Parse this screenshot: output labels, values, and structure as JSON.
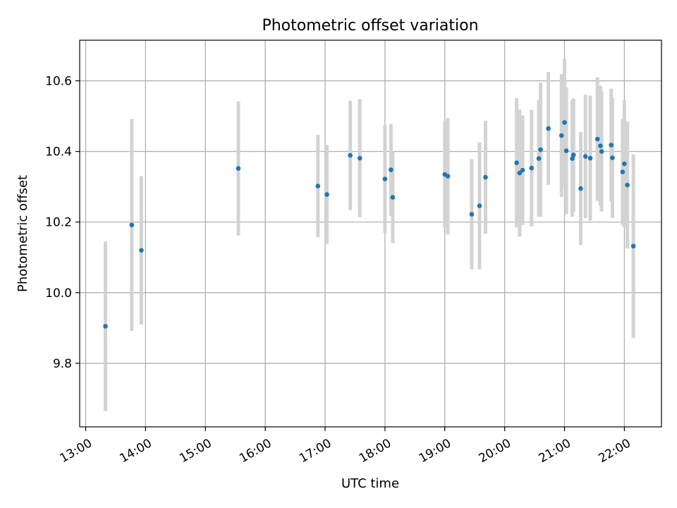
{
  "chart_data": {
    "type": "scatter",
    "title": "Photometric offset variation",
    "xlabel": "UTC time",
    "ylabel": "Photometric offset",
    "x_unit": "hours_utc",
    "xlim": [
      12.9,
      22.62
    ],
    "ylim": [
      9.62,
      10.715
    ],
    "grid": true,
    "legend": "none",
    "xticks": [
      {
        "value": 13,
        "label": "13:00"
      },
      {
        "value": 14,
        "label": "14:00"
      },
      {
        "value": 15,
        "label": "15:00"
      },
      {
        "value": 16,
        "label": "16:00"
      },
      {
        "value": 17,
        "label": "17:00"
      },
      {
        "value": 18,
        "label": "18:00"
      },
      {
        "value": 19,
        "label": "19:00"
      },
      {
        "value": 20,
        "label": "20:00"
      },
      {
        "value": 21,
        "label": "21:00"
      },
      {
        "value": 22,
        "label": "22:00"
      }
    ],
    "yticks": [
      {
        "value": 9.8,
        "label": "9.8"
      },
      {
        "value": 10.0,
        "label": "10.0"
      },
      {
        "value": 10.2,
        "label": "10.2"
      },
      {
        "value": 10.4,
        "label": "10.4"
      },
      {
        "value": 10.6,
        "label": "10.6"
      }
    ],
    "colors": {
      "point": "#1f77b4",
      "errorbar": "#d3d3d3",
      "grid": "#b0b0b0"
    },
    "series": [
      {
        "name": "offset",
        "points": [
          {
            "x": 13.33,
            "y": 9.905,
            "err": 0.24
          },
          {
            "x": 13.77,
            "y": 10.192,
            "err": 0.3
          },
          {
            "x": 13.93,
            "y": 10.12,
            "err": 0.21
          },
          {
            "x": 15.55,
            "y": 10.352,
            "err": 0.19
          },
          {
            "x": 16.88,
            "y": 10.302,
            "err": 0.145
          },
          {
            "x": 17.03,
            "y": 10.278,
            "err": 0.14
          },
          {
            "x": 17.42,
            "y": 10.389,
            "err": 0.155
          },
          {
            "x": 17.58,
            "y": 10.381,
            "err": 0.167
          },
          {
            "x": 18.0,
            "y": 10.322,
            "err": 0.153
          },
          {
            "x": 18.1,
            "y": 10.348,
            "err": 0.13
          },
          {
            "x": 18.13,
            "y": 10.27,
            "err": 0.13
          },
          {
            "x": 19.0,
            "y": 10.335,
            "err": 0.15
          },
          {
            "x": 19.05,
            "y": 10.33,
            "err": 0.165
          },
          {
            "x": 19.45,
            "y": 10.222,
            "err": 0.156
          },
          {
            "x": 19.58,
            "y": 10.246,
            "err": 0.18
          },
          {
            "x": 19.68,
            "y": 10.327,
            "err": 0.16
          },
          {
            "x": 20.2,
            "y": 10.368,
            "err": 0.183
          },
          {
            "x": 20.25,
            "y": 10.339,
            "err": 0.18
          },
          {
            "x": 20.3,
            "y": 10.347,
            "err": 0.155
          },
          {
            "x": 20.45,
            "y": 10.353,
            "err": 0.165
          },
          {
            "x": 20.57,
            "y": 10.38,
            "err": 0.165
          },
          {
            "x": 20.6,
            "y": 10.405,
            "err": 0.19
          },
          {
            "x": 20.73,
            "y": 10.465,
            "err": 0.16
          },
          {
            "x": 20.95,
            "y": 10.445,
            "err": 0.174
          },
          {
            "x": 21.0,
            "y": 10.482,
            "err": 0.18
          },
          {
            "x": 21.03,
            "y": 10.402,
            "err": 0.18
          },
          {
            "x": 21.13,
            "y": 10.38,
            "err": 0.165
          },
          {
            "x": 21.15,
            "y": 10.39,
            "err": 0.16
          },
          {
            "x": 21.27,
            "y": 10.295,
            "err": 0.16
          },
          {
            "x": 21.35,
            "y": 10.386,
            "err": 0.175
          },
          {
            "x": 21.43,
            "y": 10.381,
            "err": 0.177
          },
          {
            "x": 21.55,
            "y": 10.435,
            "err": 0.175
          },
          {
            "x": 21.6,
            "y": 10.416,
            "err": 0.17
          },
          {
            "x": 21.62,
            "y": 10.4,
            "err": 0.17
          },
          {
            "x": 21.78,
            "y": 10.418,
            "err": 0.16
          },
          {
            "x": 21.8,
            "y": 10.382,
            "err": 0.17
          },
          {
            "x": 21.97,
            "y": 10.342,
            "err": 0.15
          },
          {
            "x": 22.0,
            "y": 10.365,
            "err": 0.18
          },
          {
            "x": 22.05,
            "y": 10.305,
            "err": 0.18
          },
          {
            "x": 22.15,
            "y": 10.132,
            "err": 0.26
          }
        ]
      }
    ]
  }
}
